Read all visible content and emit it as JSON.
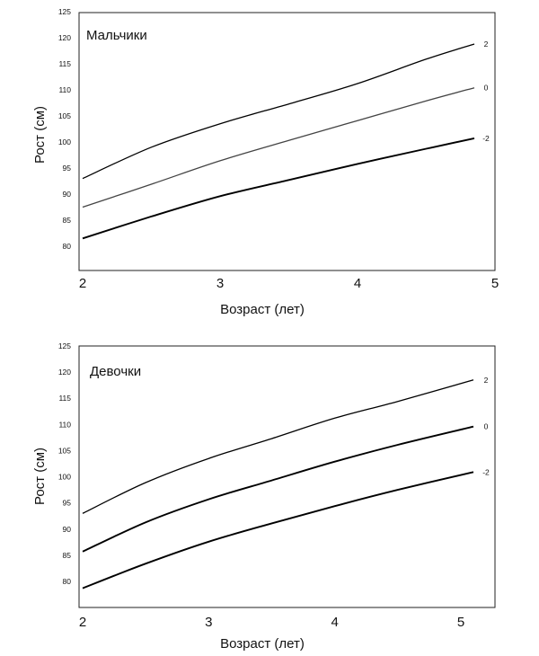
{
  "chart_data": [
    {
      "type": "line",
      "title": "Мальчики",
      "xlabel": "Возраст (лет)",
      "ylabel": "Рост (см)",
      "xlim": [
        2,
        5
      ],
      "ylim": [
        75,
        125
      ],
      "x_ticks": [
        "2",
        "3",
        "4",
        "5"
      ],
      "y_ticks": [
        "80",
        "85",
        "90",
        "95",
        "100",
        "105",
        "110",
        "115",
        "120",
        "125"
      ],
      "grid": false,
      "series": [
        {
          "name": "2",
          "color": "#000000",
          "x": [
            2.0,
            2.5,
            3.0,
            3.5,
            4.0,
            4.5,
            4.85
          ],
          "y": [
            93.0,
            99.0,
            103.5,
            107.3,
            111.2,
            115.9,
            118.8
          ]
        },
        {
          "name": "0",
          "color": "#444444",
          "x": [
            2.0,
            2.5,
            3.0,
            3.5,
            4.0,
            4.5,
            4.85
          ],
          "y": [
            87.5,
            91.9,
            96.4,
            100.3,
            104.1,
            107.9,
            110.4
          ]
        },
        {
          "name": "-2",
          "color": "#000000",
          "x": [
            2.0,
            2.5,
            3.0,
            3.5,
            4.0,
            4.5,
            4.85
          ],
          "y": [
            81.5,
            85.7,
            89.6,
            92.7,
            95.8,
            98.7,
            100.7
          ]
        }
      ]
    },
    {
      "type": "line",
      "title": "Девочки",
      "xlabel": "Возраст (лет)",
      "ylabel": "Рост (см)",
      "xlim": [
        2,
        5
      ],
      "ylim": [
        75,
        125
      ],
      "x_ticks": [
        "2",
        "3",
        "4",
        "5"
      ],
      "y_ticks": [
        "80",
        "85",
        "90",
        "95",
        "100",
        "105",
        "110",
        "115",
        "120",
        "125"
      ],
      "grid": false,
      "series": [
        {
          "name": "2",
          "color": "#000000",
          "x": [
            2.0,
            2.5,
            3.0,
            3.5,
            4.0,
            4.5,
            5.1
          ],
          "y": [
            93.0,
            98.9,
            103.5,
            107.3,
            111.2,
            114.4,
            118.5
          ]
        },
        {
          "name": "0",
          "color": "#000000",
          "x": [
            2.0,
            2.5,
            3.0,
            3.5,
            4.0,
            4.5,
            5.1
          ],
          "y": [
            85.7,
            91.3,
            95.7,
            99.3,
            102.9,
            106.1,
            109.6
          ]
        },
        {
          "name": "-2",
          "color": "#000000",
          "x": [
            2.0,
            2.5,
            3.0,
            3.5,
            4.0,
            4.5,
            5.1
          ],
          "y": [
            78.7,
            83.4,
            87.6,
            91.1,
            94.4,
            97.5,
            100.9
          ]
        }
      ]
    }
  ]
}
